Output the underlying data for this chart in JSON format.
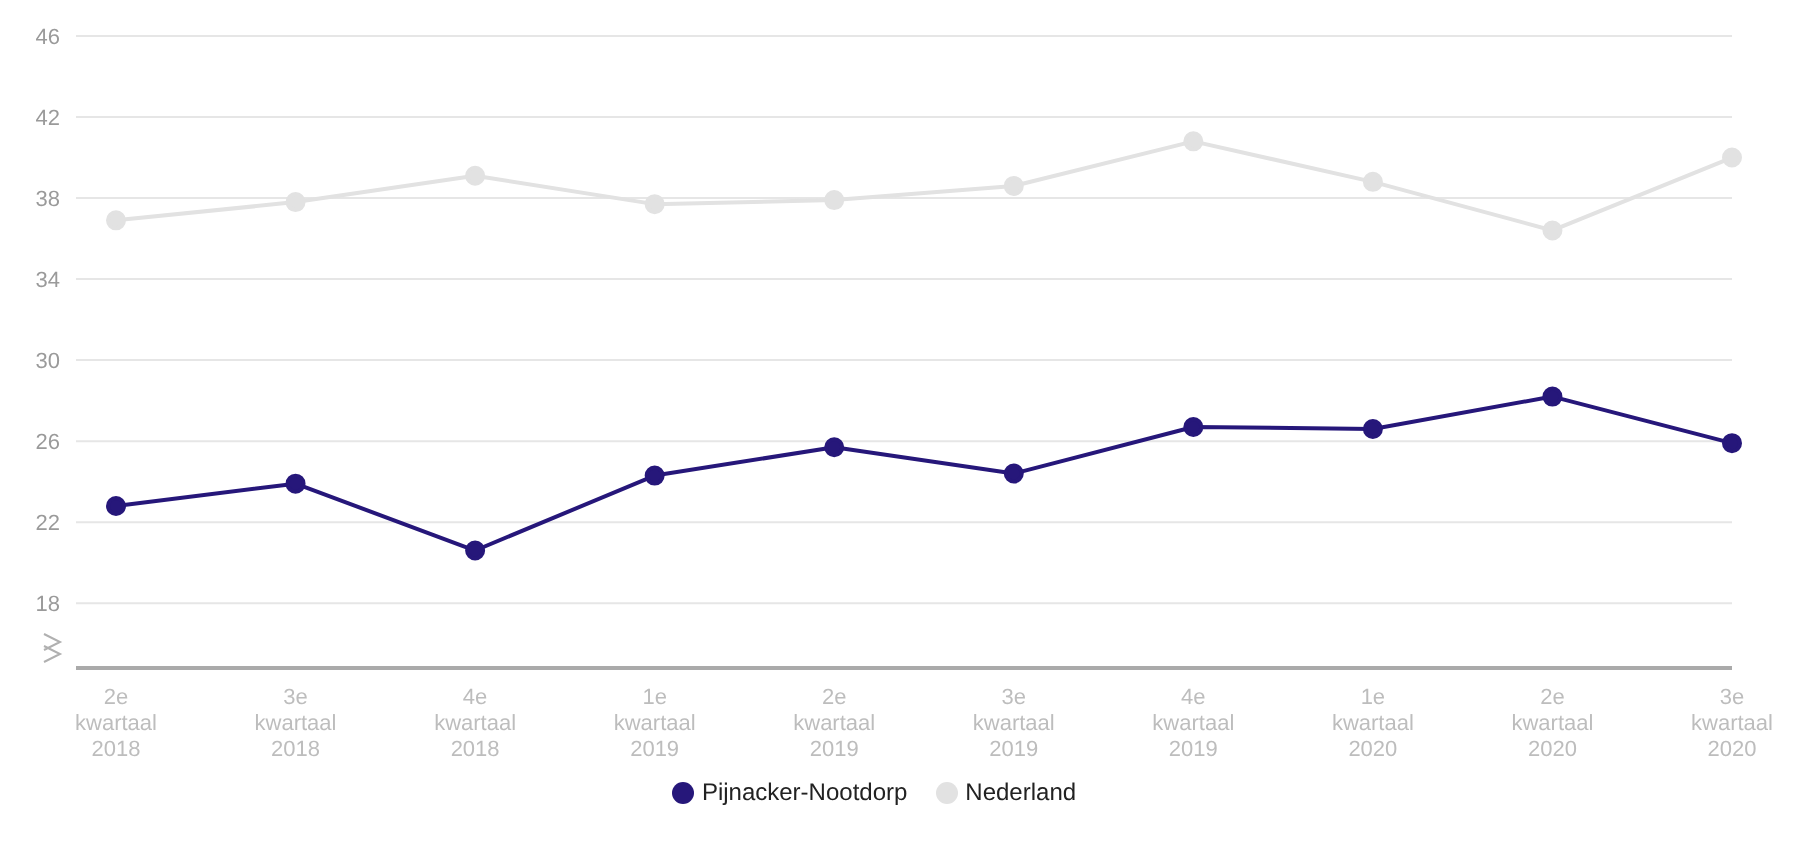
{
  "chart_data": {
    "type": "line",
    "categories": [
      "2e kwartaal 2018",
      "3e kwartaal 2018",
      "4e kwartaal 2018",
      "1e kwartaal 2019",
      "2e kwartaal 2019",
      "3e kwartaal 2019",
      "4e kwartaal 2019",
      "1e kwartaal 2020",
      "2e kwartaal 2020",
      "3e kwartaal 2020"
    ],
    "series": [
      {
        "name": "Pijnacker-Nootdorp",
        "color": "#26177a",
        "values": [
          22.8,
          23.9,
          20.6,
          24.3,
          25.7,
          24.4,
          26.7,
          26.6,
          28.2,
          25.9
        ]
      },
      {
        "name": "Nederland",
        "color": "#e2e2e2",
        "values": [
          36.9,
          37.8,
          39.1,
          37.7,
          37.9,
          38.6,
          40.8,
          38.8,
          36.4,
          40.0
        ]
      }
    ],
    "ylim": [
      14.8,
      46
    ],
    "yticks": [
      18,
      22,
      26,
      30,
      34,
      38,
      42,
      46
    ],
    "grid": "y",
    "legend": "bottom",
    "marker": "circle",
    "line_style": "solid"
  }
}
